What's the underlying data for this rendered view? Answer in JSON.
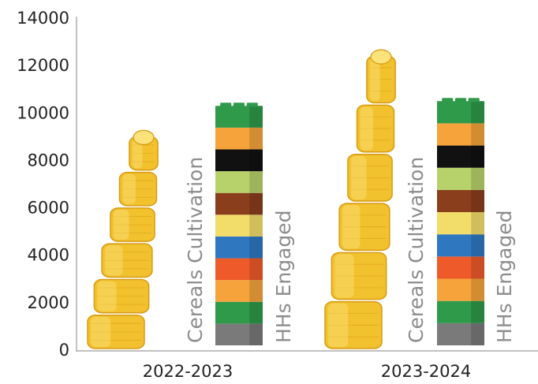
{
  "chart_data": {
    "type": "bar",
    "categories": [
      "2022-2023",
      "2023-2024"
    ],
    "series": [
      {
        "name": "Cereals Cultivation",
        "values": [
          9100,
          12500
        ]
      },
      {
        "name": "HHs Engaged",
        "values": [
          10300,
          10500
        ]
      }
    ],
    "ylim": [
      0,
      14000
    ],
    "yticks": [
      "0",
      "2000",
      "4000",
      "6000",
      "8000",
      "10000",
      "12000",
      "14000"
    ],
    "grid": false,
    "legend": "none",
    "colors": {
      "corn": "#f2c12e",
      "corn_dark": "#d69b12",
      "corn_light": "#fbe27a",
      "blocks": [
        "#7a7a7a",
        "#2e9a4a",
        "#f5a33a",
        "#ee5a2a",
        "#2f78c0",
        "#f3dd6a",
        "#8a3e1c",
        "#b7d26a",
        "#111111",
        "#f5a33a",
        "#2e9a4a"
      ],
      "axis": "#9a9a9a",
      "bar_label": "#8c8c8c"
    },
    "decoration": {
      "bar_fill_icons": [
        "corn-cob-icon",
        "stacked-blocks-icon"
      ]
    }
  }
}
